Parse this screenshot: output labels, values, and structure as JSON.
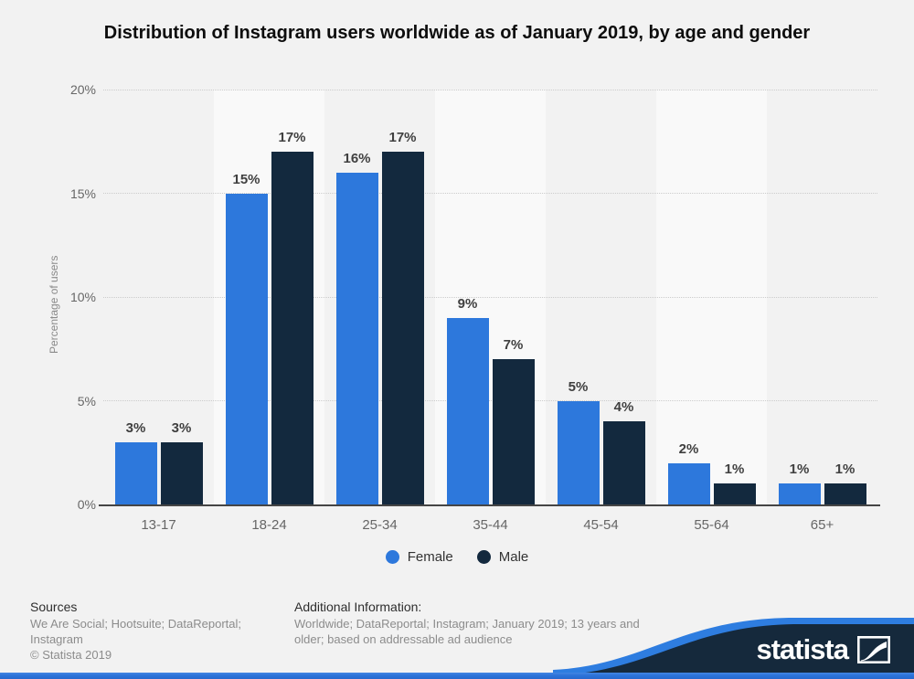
{
  "title": "Distribution of Instagram users worldwide as of January 2019, by age and gender",
  "chart_data": {
    "type": "bar",
    "categories": [
      "13-17",
      "18-24",
      "25-34",
      "35-44",
      "45-54",
      "55-64",
      "65+"
    ],
    "series": [
      {
        "name": "Female",
        "color": "#2d78dc",
        "values": [
          3,
          15,
          16,
          9,
          5,
          2,
          1
        ]
      },
      {
        "name": "Male",
        "color": "#13293e",
        "values": [
          3,
          17,
          17,
          7,
          4,
          1,
          1
        ]
      }
    ],
    "data_labels": [
      [
        "3%",
        "15%",
        "16%",
        "9%",
        "5%",
        "2%",
        "1%"
      ],
      [
        "3%",
        "17%",
        "17%",
        "7%",
        "4%",
        "1%",
        "1%"
      ]
    ],
    "xlabel": "",
    "ylabel": "Percentage of users",
    "ylim": [
      0,
      20
    ],
    "yticks": [
      0,
      5,
      10,
      15,
      20
    ],
    "ytick_labels": [
      "0%",
      "5%",
      "10%",
      "15%",
      "20%"
    ],
    "grid": "horizontal-dotted",
    "legend_position": "bottom",
    "plot_band_color": "#f9f9f9"
  },
  "footer": {
    "sources_label": "Sources",
    "sources_text": "We Are Social; Hootsuite; DataReportal; Instagram",
    "copyright": "© Statista 2019",
    "additional_label": "Additional Information:",
    "additional_text": "Worldwide; DataReportal; Instagram; January 2019; 13 years and older; based on addressable ad audience"
  },
  "branding": {
    "wordmark": "statista"
  },
  "colors": {
    "background": "#f2f2f2",
    "female_blue": "#2d78dc",
    "male_navy": "#13293e",
    "wave_blue": "#2e7de0",
    "wave_navy": "#15293c",
    "bottom_bar_blue": "#2c73d9"
  }
}
